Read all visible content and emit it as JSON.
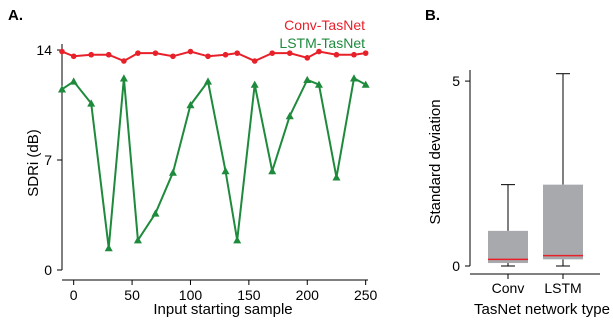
{
  "panels": {
    "a_label": "A.",
    "b_label": "B."
  },
  "chart_data": [
    {
      "type": "line",
      "xlabel": "Input starting sample",
      "ylabel": "SDRi (dB)",
      "xlim": [
        -10,
        252
      ],
      "ylim": [
        0,
        14
      ],
      "xticks": [
        0,
        50,
        100,
        150,
        200,
        250
      ],
      "yticks": [
        0,
        7,
        14
      ],
      "legend_position": "top-right",
      "x": [
        -10,
        0,
        15,
        30,
        43,
        55,
        70,
        85,
        100,
        115,
        130,
        140,
        155,
        170,
        185,
        200,
        210,
        225,
        240,
        250
      ],
      "series": [
        {
          "name": "Conv-TasNet",
          "color": "#e8202a",
          "marker": "circle",
          "values": [
            13.9,
            13.6,
            13.7,
            13.7,
            13.3,
            13.8,
            13.8,
            13.6,
            13.9,
            13.6,
            13.7,
            13.8,
            13.3,
            13.8,
            13.8,
            13.5,
            13.9,
            13.7,
            13.7,
            13.8
          ]
        },
        {
          "name": "LSTM-TasNet",
          "color": "#1e8a3c",
          "marker": "triangle",
          "values": [
            11.5,
            12.0,
            10.6,
            1.4,
            12.2,
            1.9,
            3.6,
            6.2,
            10.5,
            12.0,
            6.3,
            1.9,
            11.8,
            6.3,
            9.8,
            12.1,
            11.8,
            5.9,
            12.2,
            11.8
          ]
        }
      ]
    },
    {
      "type": "box",
      "xlabel": "TasNet network type",
      "ylabel": "Standard deviation",
      "ylim": [
        0,
        5.3
      ],
      "yticks": [
        0,
        5
      ],
      "categories": [
        "Conv",
        "LSTM"
      ],
      "boxes": [
        {
          "name": "Conv",
          "whisker_low": 0.0,
          "q1": 0.08,
          "median": 0.18,
          "q3": 0.95,
          "whisker_high": 2.2
        },
        {
          "name": "LSTM",
          "whisker_low": 0.0,
          "q1": 0.18,
          "median": 0.28,
          "q3": 2.2,
          "whisker_high": 5.2
        }
      ],
      "box_fill": "#a7a9ac",
      "median_color": "#e8202a"
    }
  ]
}
